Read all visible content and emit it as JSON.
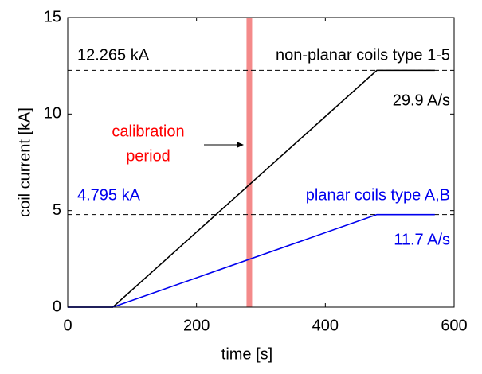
{
  "chart_data": {
    "type": "line",
    "x_label": "time [s]",
    "y_label": "coil current [kA]",
    "x": [
      0,
      70,
      480,
      570
    ],
    "series": [
      {
        "name": "non-planar coils type 1-5",
        "color": "#000000",
        "values": [
          0,
          0,
          12.265,
          12.265
        ],
        "rate_label": "29.9 A/s"
      },
      {
        "name": "planar coils type A,B",
        "color": "#0000ee",
        "values": [
          0,
          0,
          4.795,
          4.795
        ],
        "rate_label": "11.7 A/s"
      }
    ],
    "reference_lines": [
      {
        "value": 12.265,
        "label": "12.265 kA"
      },
      {
        "value": 4.795,
        "label": "4.795 kA"
      }
    ],
    "calibration": {
      "x": 282,
      "label": [
        "calibration",
        "period"
      ],
      "color": "#f48a8a"
    },
    "xlim": [
      0,
      600
    ],
    "xticks": [
      0,
      200,
      400,
      600
    ],
    "ylim": [
      0,
      15
    ],
    "yticks": [
      0,
      5,
      10,
      15
    ]
  }
}
